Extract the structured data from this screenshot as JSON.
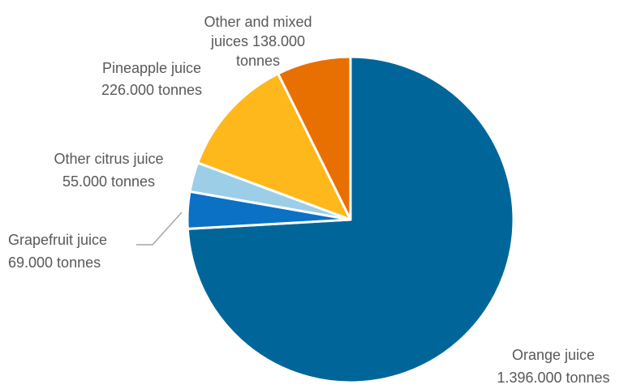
{
  "chart_data": {
    "type": "pie",
    "start_angle_deg": 0,
    "direction": "clockwise",
    "slice_border_color": "#ffffff",
    "slices": [
      {
        "name": "Orange juice",
        "value": 1396000,
        "value_label": "1.396.000  tonnes",
        "color": "#006699"
      },
      {
        "name": "Grapefruit juice",
        "value": 69000,
        "value_label": "69.000  tonnes",
        "color": "#0a71c5"
      },
      {
        "name": "Other citrus juice",
        "value": 55000,
        "value_label": "55.000  tonnes",
        "color": "#9ccee8"
      },
      {
        "name": "Pineapple juice",
        "value": 226000,
        "value_label": "226.000  tonnes",
        "color": "#ffb81c"
      },
      {
        "name": "Other and mixed juices",
        "value": 138000,
        "value_label": "138.000 tonnes",
        "color": "#e87000"
      }
    ],
    "labels": [
      {
        "lines": [
          "Other and mixed",
          "juices  138.000",
          "tonnes"
        ]
      },
      {
        "lines": [
          "Pineapple juice",
          "226.000  tonnes"
        ]
      },
      {
        "lines": [
          "Other citrus juice",
          "55.000  tonnes"
        ]
      },
      {
        "lines": [
          "Grapefruit juice",
          "69.000  tonnes"
        ]
      },
      {
        "lines": [
          "Orange juice",
          "1.396.000  tonnes"
        ]
      }
    ]
  }
}
